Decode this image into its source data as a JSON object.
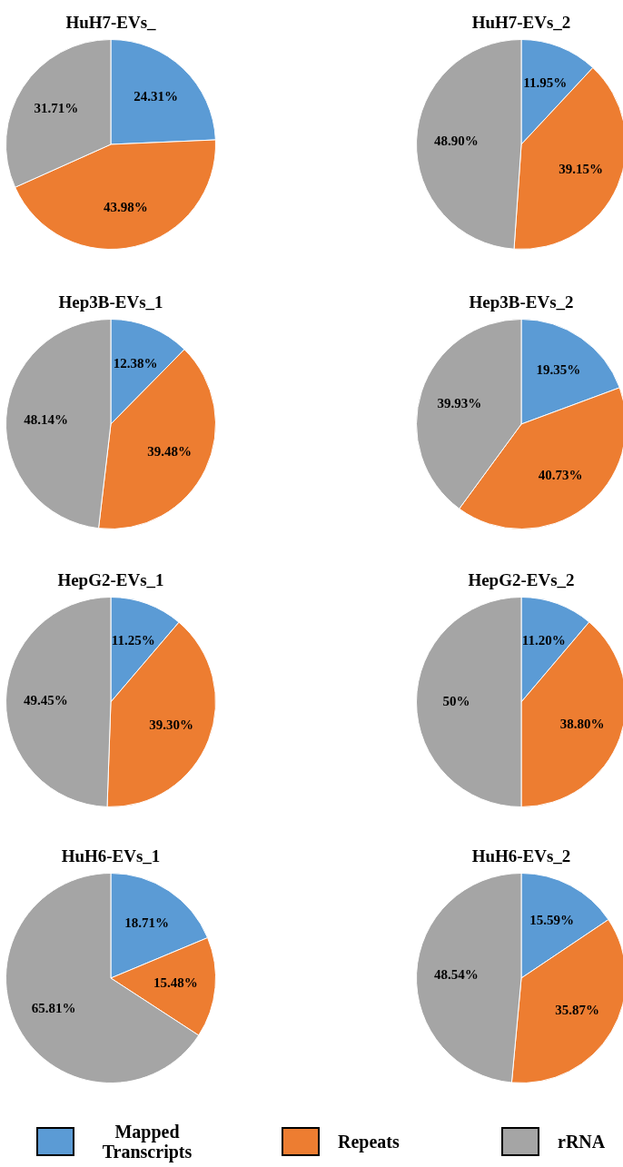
{
  "chart_data": [
    {
      "type": "pie",
      "title": "HuH7-EVs_",
      "categories": [
        "Mapped Transcripts",
        "Repeats",
        "rRNA"
      ],
      "values": [
        24.31,
        43.98,
        31.71
      ],
      "value_labels": [
        "24.31%",
        "43.98%",
        "31.71%"
      ],
      "colors": [
        "#5b9bd5",
        "#ed7d31",
        "#a5a5a5"
      ],
      "legend": "bottom"
    },
    {
      "type": "pie",
      "title": "HuH7-EVs_2",
      "categories": [
        null,
        null,
        null
      ],
      "values": [
        11.95,
        39.15,
        48.9
      ],
      "value_labels": [
        "11.95%",
        "39.15%",
        "48.90%"
      ],
      "colors": [
        "#5b9bd5",
        "#ed7d31",
        "#a5a5a5"
      ]
    },
    {
      "type": "pie",
      "title": "Hep3B-EVs_1",
      "categories": [
        null,
        null,
        null
      ],
      "values": [
        12.38,
        39.48,
        48.14
      ],
      "value_labels": [
        "12.38%",
        "39.48%",
        "48.14%"
      ],
      "colors": [
        "#5b9bd5",
        "#ed7d31",
        "#a5a5a5"
      ]
    },
    {
      "type": "pie",
      "title": "Hep3B-EVs_2",
      "categories": [
        null,
        null,
        null
      ],
      "values": [
        19.35,
        40.73,
        39.93
      ],
      "value_labels": [
        "19.35%",
        "40.73%",
        "39.93%"
      ],
      "colors": [
        "#5b9bd5",
        "#ed7d31",
        "#a5a5a5"
      ]
    },
    {
      "type": "pie",
      "title": "HepG2-EVs_1",
      "categories": [
        null,
        null,
        null
      ],
      "values": [
        11.25,
        39.3,
        49.45
      ],
      "value_labels": [
        "11.25%",
        "39.30%",
        "49.45%"
      ],
      "colors": [
        "#5b9bd5",
        "#ed7d31",
        "#a5a5a5"
      ]
    },
    {
      "type": "pie",
      "title": "HepG2-EVs_2",
      "categories": [
        null,
        null,
        null
      ],
      "values": [
        11.2,
        38.8,
        50
      ],
      "value_labels": [
        "11.20%",
        "38.80%",
        "50%"
      ],
      "colors": [
        "#5b9bd5",
        "#ed7d31",
        "#a5a5a5"
      ]
    },
    {
      "type": "pie",
      "title": "HuH6-EVs_1",
      "categories": [
        null,
        null,
        null
      ],
      "values": [
        18.71,
        15.48,
        65.81
      ],
      "value_labels": [
        "18.71%",
        "15.48%",
        "65.81%"
      ],
      "colors": [
        "#5b9bd5",
        "#ed7d31",
        "#a5a5a5"
      ]
    },
    {
      "type": "pie",
      "title": "HuH6-EVs_2",
      "categories": [
        null,
        null,
        null
      ],
      "values": [
        15.59,
        35.87,
        48.54
      ],
      "value_labels": [
        "15.59%",
        "35.87%",
        "48.54%"
      ],
      "colors": [
        "#5b9bd5",
        "#ed7d31",
        "#a5a5a5"
      ]
    }
  ]
}
